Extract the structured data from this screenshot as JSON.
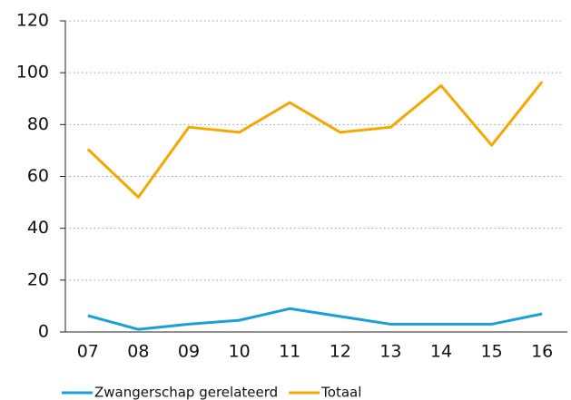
{
  "chart_data": {
    "type": "line",
    "categories": [
      "07",
      "08",
      "09",
      "10",
      "11",
      "12",
      "13",
      "14",
      "15",
      "16"
    ],
    "series": [
      {
        "name": "Zwangerschap gerelateerd",
        "color": "#1a9fd9",
        "values": [
          6.3,
          1,
          3,
          4.5,
          9,
          6,
          3,
          3,
          3,
          7
        ]
      },
      {
        "name": "Totaal",
        "color": "#f5a800",
        "values": [
          70.5,
          52,
          79,
          77,
          88.5,
          77,
          79,
          95,
          72,
          96.5
        ]
      }
    ],
    "ylim": [
      0,
      120
    ],
    "yticks": [
      0,
      20,
      40,
      60,
      80,
      100,
      120
    ],
    "grid": true
  }
}
